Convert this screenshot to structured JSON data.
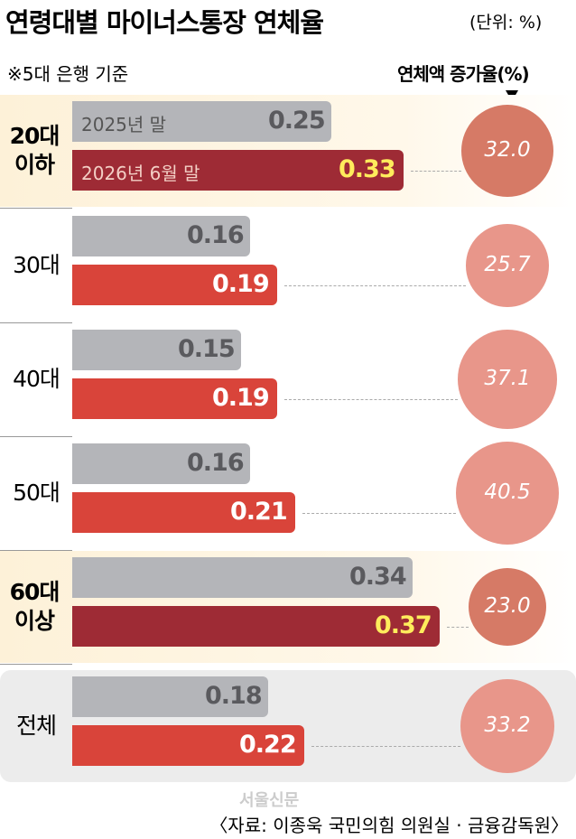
{
  "chart_data": {
    "type": "bar",
    "title": "연령대별 마이너스통장 연체율",
    "unit": "(단위: %)",
    "note": "※5대 은행 기준",
    "categories": [
      "20대 이하",
      "30대",
      "40대",
      "50대",
      "60대 이상",
      "전체"
    ],
    "series": [
      {
        "name": "2025년 말",
        "color": "#b4b5b9",
        "values": [
          0.25,
          0.16,
          0.15,
          0.16,
          0.34,
          0.18
        ]
      },
      {
        "name": "2026년 6월 말",
        "color": "#d9443a",
        "colors": [
          "#9e2b35",
          "#d9443a",
          "#d9443a",
          "#d9443a",
          "#9e2b35",
          "#d9443a"
        ],
        "values": [
          0.33,
          0.19,
          0.19,
          0.21,
          0.37,
          0.22
        ]
      }
    ],
    "growth": {
      "name": "연체액 증가율(%)",
      "color": "#e8968a",
      "colors": [
        "#d67a66",
        "#e8968a",
        "#e8968a",
        "#e8968a",
        "#d67a66",
        "#e8968a"
      ],
      "values": [
        32.0,
        25.7,
        37.1,
        40.5,
        23.0,
        33.2
      ],
      "value_labels": [
        "32.0",
        "25.7",
        "37.1",
        "40.5",
        "23.0",
        "33.2"
      ]
    },
    "source": "〈자료: 이종욱 국민의힘 의원실 · 금융감독원〉",
    "watermark": "서울신문"
  }
}
